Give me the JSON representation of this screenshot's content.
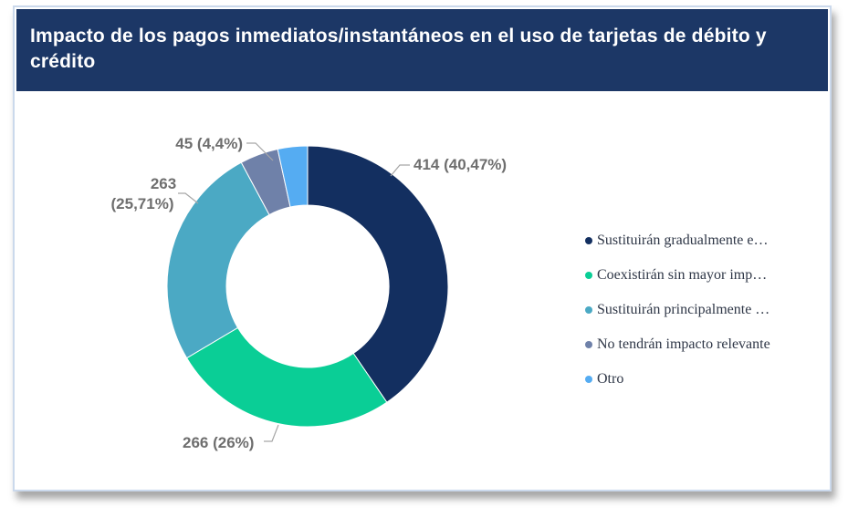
{
  "header": {
    "title": "Impacto de los pagos inmediatos/instantáneos en el uso de tarjetas de débito y crédito"
  },
  "chart_data": {
    "type": "pie",
    "subtype": "donut",
    "title": "Impacto de los pagos inmediatos/instantáneos en el uso de tarjetas de débito y crédito",
    "legend_position": "right",
    "colors": {
      "header_bar": "#1c3766",
      "data_label_text": "#6e6e6e",
      "leader_line": "#a6a6a6",
      "card_border": "#cbd9ec",
      "legend_text": "#2f3747"
    },
    "slices": [
      {
        "name": "Sustituirán gradualmente e…",
        "value": 414,
        "percent": "40,47%",
        "data_label": "414 (40,47%)",
        "color": "#132f60"
      },
      {
        "name": "Coexistirán sin mayor imp…",
        "value": 266,
        "percent": "26%",
        "data_label": "266 (26%)",
        "color": "#0ace96"
      },
      {
        "name": "Sustituirán principalmente …",
        "value": 263,
        "percent": "25,71%",
        "data_label": "263 (25,71%)",
        "color": "#4ba9c4"
      },
      {
        "name": "No tendrán impacto relevante",
        "value": 45,
        "percent": "4,4%",
        "data_label": "45 (4,4%)",
        "color": "#6f81a9"
      },
      {
        "name": "Otro",
        "value": 35,
        "percent": "",
        "data_label": "",
        "color": "#55acf2",
        "estimated": true
      }
    ]
  }
}
